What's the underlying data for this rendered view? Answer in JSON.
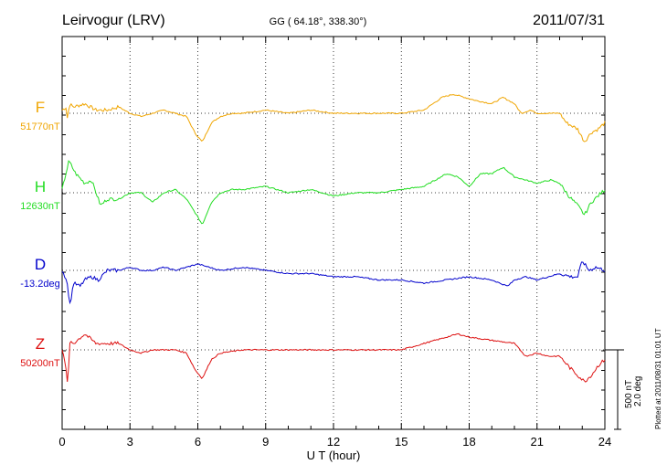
{
  "header": {
    "station": "Leirvogur (LRV)",
    "coords": "GG ( 64.18°, 338.30°)",
    "date": "2011/07/31"
  },
  "footer": {
    "xlabel": "U T (hour)",
    "plotted": "Plotted at 2011/08/31 01:01 UT"
  },
  "scale": {
    "nt": "500 nT",
    "deg": "2.0 deg"
  },
  "chart_data": {
    "type": "line",
    "xlabel": "U T (hour)",
    "xlim": [
      0,
      24
    ],
    "x_ticks": [
      "0",
      "3",
      "6",
      "9",
      "12",
      "15",
      "18",
      "21",
      "24"
    ],
    "scale_bar": {
      "nT": 500,
      "deg": 2.0
    },
    "grid": "dotted vertical lines every 3 hours; dotted baseline per trace",
    "series": [
      {
        "name": "F",
        "baseline": "51770nT",
        "color": "#f0a500",
        "x": [
          0,
          0.2,
          0.25,
          0.3,
          0.5,
          1,
          1.5,
          2,
          2.5,
          3,
          3.5,
          4,
          4.5,
          5,
          5.5,
          5.9,
          6.2,
          6.6,
          7,
          7.5,
          8,
          9,
          10,
          11,
          12,
          13,
          14,
          15,
          16,
          16.8,
          17.3,
          17.8,
          18.3,
          19,
          19.5,
          20,
          20.3,
          20.7,
          21,
          21.6,
          22,
          22.3,
          22.8,
          23.1,
          23.4,
          23.7,
          24
        ],
        "y": [
          20,
          40,
          -80,
          60,
          40,
          60,
          20,
          20,
          40,
          0,
          -20,
          0,
          20,
          0,
          -20,
          -130,
          -180,
          -60,
          -20,
          0,
          0,
          20,
          0,
          20,
          0,
          0,
          0,
          0,
          20,
          100,
          120,
          100,
          80,
          60,
          100,
          60,
          0,
          20,
          0,
          0,
          0,
          -60,
          -100,
          -180,
          -120,
          -100,
          -60
        ]
      },
      {
        "name": "H",
        "baseline": "12630nT",
        "color": "#22dd22",
        "x": [
          0,
          0.3,
          0.6,
          1,
          1.3,
          1.7,
          2,
          2.5,
          3,
          3.5,
          4,
          4.5,
          5,
          5.5,
          5.9,
          6.2,
          6.6,
          7,
          7.5,
          8,
          9,
          10,
          11,
          12,
          13,
          14,
          15,
          16,
          17,
          17.5,
          18,
          18.5,
          19,
          19.5,
          20,
          20.5,
          21,
          21.6,
          22,
          22.4,
          22.8,
          23.1,
          23.4,
          23.7,
          24
        ],
        "y": [
          20,
          200,
          120,
          60,
          80,
          -80,
          -40,
          -40,
          0,
          0,
          -60,
          0,
          20,
          -40,
          -130,
          -200,
          -60,
          0,
          20,
          20,
          40,
          0,
          20,
          -20,
          0,
          0,
          20,
          40,
          120,
          100,
          40,
          120,
          120,
          160,
          100,
          80,
          60,
          80,
          60,
          -20,
          -80,
          -140,
          -60,
          -20,
          20
        ]
      },
      {
        "name": "D",
        "baseline": "-13.2deg",
        "color": "#0000cc",
        "x": [
          0,
          0.2,
          0.35,
          0.5,
          0.8,
          1,
          1.3,
          1.6,
          2,
          2.5,
          3,
          3.5,
          4,
          4.5,
          5,
          5.5,
          6,
          6.5,
          7,
          8,
          9,
          10,
          11,
          12,
          13,
          14,
          15,
          16,
          17,
          18,
          19,
          19.7,
          20,
          20.5,
          21,
          21.5,
          22,
          22.5,
          22.8,
          23,
          23.3,
          23.6,
          24
        ],
        "y": [
          0,
          -60,
          -220,
          -80,
          -100,
          -60,
          -40,
          -60,
          0,
          0,
          20,
          0,
          0,
          20,
          0,
          20,
          40,
          20,
          0,
          20,
          0,
          -20,
          -20,
          -40,
          -40,
          -60,
          -60,
          -80,
          -60,
          -40,
          -60,
          -100,
          -60,
          -40,
          -60,
          -40,
          -20,
          -40,
          -40,
          60,
          0,
          20,
          0
        ]
      },
      {
        "name": "Z",
        "baseline": "50200nT",
        "color": "#dd1111",
        "x": [
          0,
          0.15,
          0.25,
          0.35,
          0.5,
          1,
          1.5,
          2,
          2.5,
          3,
          3.5,
          4,
          4.5,
          5,
          5.5,
          5.9,
          6.2,
          6.6,
          7,
          8,
          9,
          10,
          11,
          12,
          13,
          14,
          15,
          16,
          17,
          17.5,
          18,
          19,
          20,
          20.5,
          21,
          21.5,
          22,
          22.5,
          22.8,
          23.1,
          23.4,
          23.7,
          24
        ],
        "y": [
          0,
          -100,
          -220,
          60,
          40,
          100,
          40,
          40,
          40,
          0,
          -20,
          0,
          0,
          0,
          -20,
          -130,
          -180,
          -60,
          -20,
          0,
          0,
          0,
          0,
          0,
          0,
          0,
          0,
          40,
          80,
          100,
          80,
          60,
          40,
          -40,
          -20,
          -40,
          -40,
          -120,
          -160,
          -200,
          -160,
          -100,
          -60
        ]
      }
    ]
  }
}
